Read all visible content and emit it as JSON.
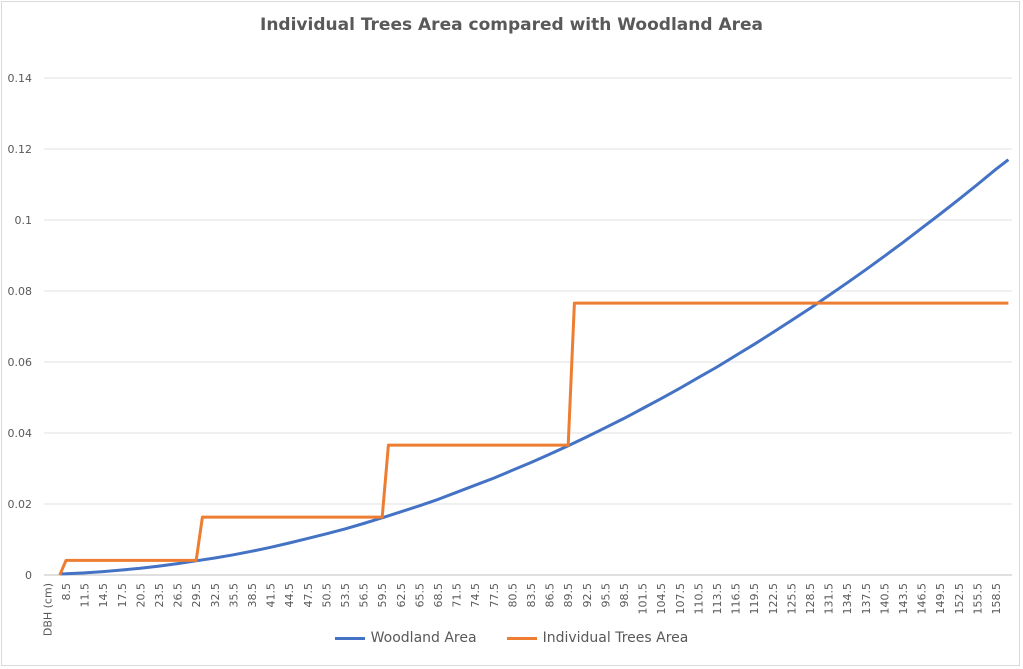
{
  "chart_data": {
    "type": "line",
    "title": "Individual Trees Area compared with Woodland Area",
    "xlabel": "DBH (cm)",
    "ylabel": "",
    "ylim": [
      0,
      0.14
    ],
    "yticks": [
      "0",
      "0.02",
      "0.04",
      "0.06",
      "0.08",
      "0.1",
      "0.12",
      "0.14"
    ],
    "xtick_labels": [
      "8.5",
      "11.5",
      "14.5",
      "17.5",
      "20.5",
      "23.5",
      "26.5",
      "29.5",
      "32.5",
      "35.5",
      "38.5",
      "41.5",
      "44.5",
      "47.5",
      "50.5",
      "53.5",
      "56.5",
      "59.5",
      "62.5",
      "65.5",
      "68.5",
      "71.5",
      "74.5",
      "77.5",
      "80.5",
      "83.5",
      "86.5",
      "89.5",
      "92.5",
      "95.5",
      "98.5",
      "101.5",
      "104.5",
      "107.5",
      "110.5",
      "113.5",
      "116.5",
      "119.5",
      "122.5",
      "125.5",
      "128.5",
      "131.5",
      "134.5",
      "137.5",
      "140.5",
      "143.5",
      "146.5",
      "149.5",
      "152.5",
      "155.5",
      "158.5"
    ],
    "grid": true,
    "legend": "bottom",
    "series": [
      {
        "name": "Woodland Area",
        "color": "#4472c4",
        "x": [
          7.5,
          8.5,
          11.5,
          14.5,
          17.5,
          20.5,
          23.5,
          26.5,
          29.5,
          32.5,
          35.5,
          38.5,
          41.5,
          44.5,
          47.5,
          50.5,
          53.5,
          56.5,
          59.5,
          62.5,
          65.5,
          68.5,
          71.5,
          74.5,
          77.5,
          80.5,
          83.5,
          86.5,
          89.5,
          92.5,
          95.5,
          98.5,
          101.5,
          104.5,
          107.5,
          110.5,
          113.5,
          116.5,
          119.5,
          122.5,
          125.5,
          128.5,
          131.5,
          134.5,
          137.5,
          140.5,
          143.5,
          146.5,
          149.5,
          152.5,
          155.5,
          158.5,
          160.5
        ],
        "y": [
          0.0003,
          0.00033,
          0.0006,
          0.00096,
          0.0014,
          0.0019,
          0.0025,
          0.0032,
          0.004,
          0.0048,
          0.0057,
          0.0067,
          0.0078,
          0.009,
          0.0103,
          0.0116,
          0.013,
          0.0145,
          0.0161,
          0.0178,
          0.0195,
          0.0213,
          0.0233,
          0.0253,
          0.0273,
          0.0295,
          0.0317,
          0.034,
          0.0364,
          0.0389,
          0.0415,
          0.0441,
          0.0469,
          0.0497,
          0.0526,
          0.0556,
          0.0586,
          0.0618,
          0.065,
          0.0683,
          0.0717,
          0.0751,
          0.0787,
          0.0823,
          0.086,
          0.0898,
          0.0937,
          0.0977,
          0.1017,
          0.1058,
          0.11,
          0.1143,
          0.117
        ]
      },
      {
        "name": "Individual Trees Area",
        "color": "#ed7d31",
        "x": [
          7.5,
          8.5,
          29.5,
          30.5,
          59.5,
          60.5,
          89.5,
          90.5,
          160.5
        ],
        "y": [
          0,
          0.0041,
          0.0041,
          0.0163,
          0.0163,
          0.0366,
          0.0366,
          0.0766,
          0.0766
        ]
      }
    ]
  }
}
